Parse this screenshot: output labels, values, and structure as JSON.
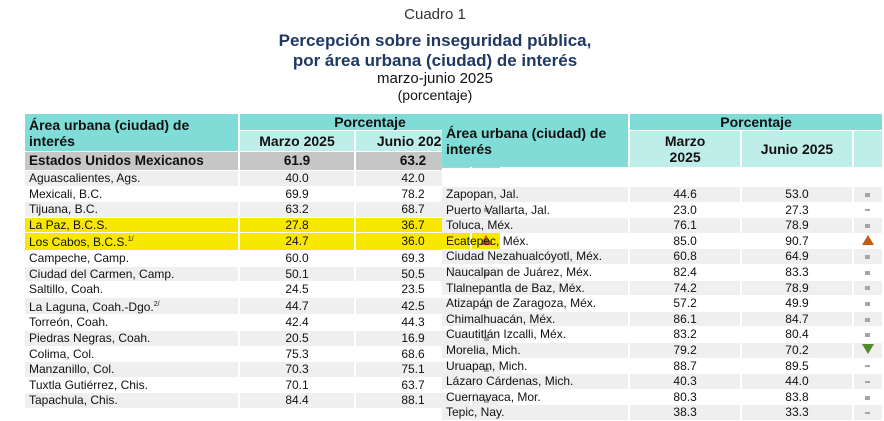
{
  "title": {
    "label": "Cuadro 1",
    "line1": "Percepción sobre inseguridad pública,",
    "line2": "por área urbana (ciudad) de interés",
    "period": "marzo-junio 2025",
    "unit": "(porcentaje)"
  },
  "header": {
    "area": "Área urbana (ciudad) de interés",
    "group": "Porcentaje",
    "col1": "Marzo 2025",
    "col2": "Junio 2025"
  },
  "colors": {
    "up": "#c55a11",
    "down": "#4f8a2b",
    "highlight": "#f8e800",
    "header": "#7fdcd6"
  },
  "national": {
    "name": "Estados Unidos Mexicanos",
    "marzo": "61.9",
    "junio": "63.2",
    "trend": "up"
  },
  "left": [
    {
      "name": "Aguascalientes, Ags.",
      "marzo": "40.0",
      "junio": "42.0",
      "trend": "same"
    },
    {
      "name": "Mexicali, B.C.",
      "marzo": "69.9",
      "junio": "78.2",
      "trend": "up"
    },
    {
      "name": "Tijuana, B.C.",
      "marzo": "63.2",
      "junio": "68.7",
      "trend": "same"
    },
    {
      "name": "La Paz, B.C.S.",
      "marzo": "27.8",
      "junio": "36.7",
      "trend": "up",
      "hl": true
    },
    {
      "name": "Los Cabos, B.C.S.",
      "sup": "1/",
      "marzo": "24.7",
      "junio": "36.0",
      "trend": "up",
      "hl": true
    },
    {
      "name": "Campeche, Camp.",
      "marzo": "60.0",
      "junio": "69.3",
      "trend": "up"
    },
    {
      "name": "Ciudad del Carmen, Camp.",
      "marzo": "50.1",
      "junio": "50.5",
      "trend": "same"
    },
    {
      "name": "Saltillo, Coah.",
      "marzo": "24.5",
      "junio": "23.5",
      "trend": "same"
    },
    {
      "name": "La Laguna, Coah.-Dgo.",
      "sup": "2/",
      "marzo": "44.7",
      "junio": "42.5",
      "trend": "same"
    },
    {
      "name": "Torreón, Coah.",
      "marzo": "42.4",
      "junio": "44.3",
      "trend": "same"
    },
    {
      "name": "Piedras Negras, Coah.",
      "marzo": "20.5",
      "junio": "16.9",
      "trend": "same"
    },
    {
      "name": "Colima, Col.",
      "marzo": "75.3",
      "junio": "68.6",
      "trend": "same"
    },
    {
      "name": "Manzanillo, Col.",
      "marzo": "70.3",
      "junio": "75.1",
      "trend": "same"
    },
    {
      "name": "Tuxtla Gutiérrez, Chis.",
      "marzo": "70.1",
      "junio": "63.7",
      "trend": "same"
    },
    {
      "name": "Tapachula, Chis.",
      "marzo": "84.4",
      "junio": "88.1",
      "trend": "same"
    }
  ],
  "right": [
    {
      "name": "Zapopan, Jal.",
      "marzo": "44.6",
      "junio": "53.0",
      "trend": "same"
    },
    {
      "name": "Puerto Vallarta, Jal.",
      "marzo": "23.0",
      "junio": "27.3",
      "trend": "dash"
    },
    {
      "name": "Toluca, Méx.",
      "marzo": "76.1",
      "junio": "78.9",
      "trend": "same"
    },
    {
      "name": "Ecatepec, Méx.",
      "marzo": "85.0",
      "junio": "90.7",
      "trend": "up"
    },
    {
      "name": "Ciudad Nezahualcóyotl, Méx.",
      "marzo": "60.8",
      "junio": "64.9",
      "trend": "same"
    },
    {
      "name": "Naucalpan de Juárez, Méx.",
      "marzo": "82.4",
      "junio": "83.3",
      "trend": "same"
    },
    {
      "name": "Tlalnepantla de Baz, Méx.",
      "marzo": "74.2",
      "junio": "78.9",
      "trend": "same"
    },
    {
      "name": "Atizapán de Zaragoza, Méx.",
      "marzo": "57.2",
      "junio": "49.9",
      "trend": "same"
    },
    {
      "name": "Chimalhuacán, Méx.",
      "marzo": "86.1",
      "junio": "84.7",
      "trend": "same"
    },
    {
      "name": "Cuautitlán Izcalli, Méx.",
      "marzo": "83.2",
      "junio": "80.4",
      "trend": "same"
    },
    {
      "name": "Morelia, Mich.",
      "marzo": "79.2",
      "junio": "70.2",
      "trend": "down"
    },
    {
      "name": "Uruapan, Mich.",
      "marzo": "88.7",
      "junio": "89.5",
      "trend": "dash"
    },
    {
      "name": "Lázaro Cárdenas, Mich.",
      "marzo": "40.3",
      "junio": "44.0",
      "trend": "dash"
    },
    {
      "name": "Cuernavaca, Mor.",
      "marzo": "80.3",
      "junio": "83.8",
      "trend": "same"
    },
    {
      "name": "Tepic, Nay.",
      "marzo": "38.3",
      "junio": "33.3",
      "trend": "dash"
    }
  ]
}
